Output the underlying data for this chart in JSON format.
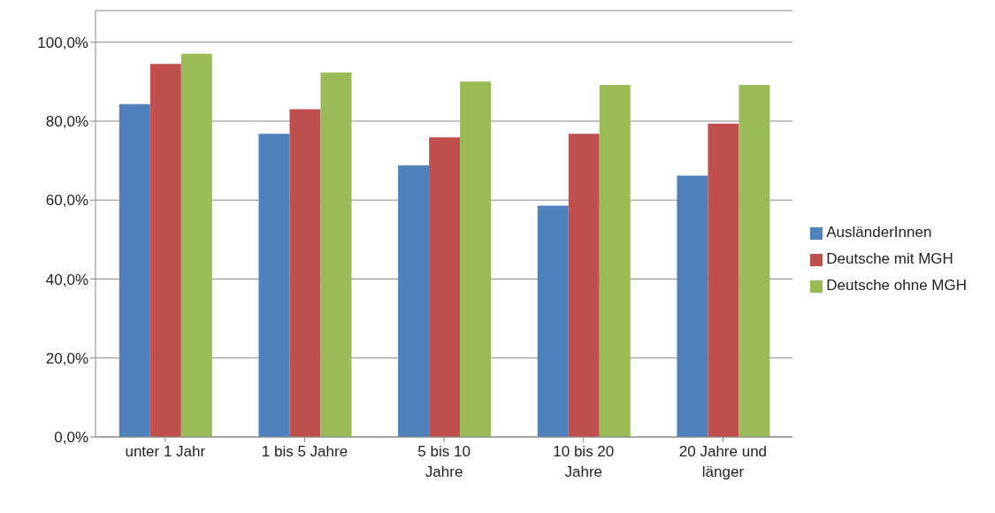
{
  "chart_data": {
    "type": "bar",
    "categories": [
      "unter 1 Jahr",
      "1 bis 5 Jahre",
      "5 bis 10 Jahre",
      "10 bis 20 Jahre",
      "20 Jahre und länger"
    ],
    "series": [
      {
        "name": "AusländerInnen",
        "color": "#4f81bd",
        "values": [
          84.3,
          76.8,
          68.8,
          58.6,
          66.2
        ]
      },
      {
        "name": "Deutsche mit MGH",
        "color": "#c0504d",
        "values": [
          94.5,
          83.0,
          75.9,
          76.8,
          79.4
        ]
      },
      {
        "name": "Deutsche ohne MGH",
        "color": "#9bbb59",
        "values": [
          97.1,
          92.3,
          90.0,
          89.2,
          89.2
        ]
      }
    ],
    "ylim": [
      0,
      108
    ],
    "yticks": [
      {
        "value": 0,
        "label": "0,0%"
      },
      {
        "value": 20,
        "label": "20,0%"
      },
      {
        "value": 40,
        "label": "40,0%"
      },
      {
        "value": 60,
        "label": "60,0%"
      },
      {
        "value": 80,
        "label": "80,0%"
      },
      {
        "value": 100,
        "label": "100,0%"
      }
    ],
    "grid": "y",
    "legend": "right"
  }
}
